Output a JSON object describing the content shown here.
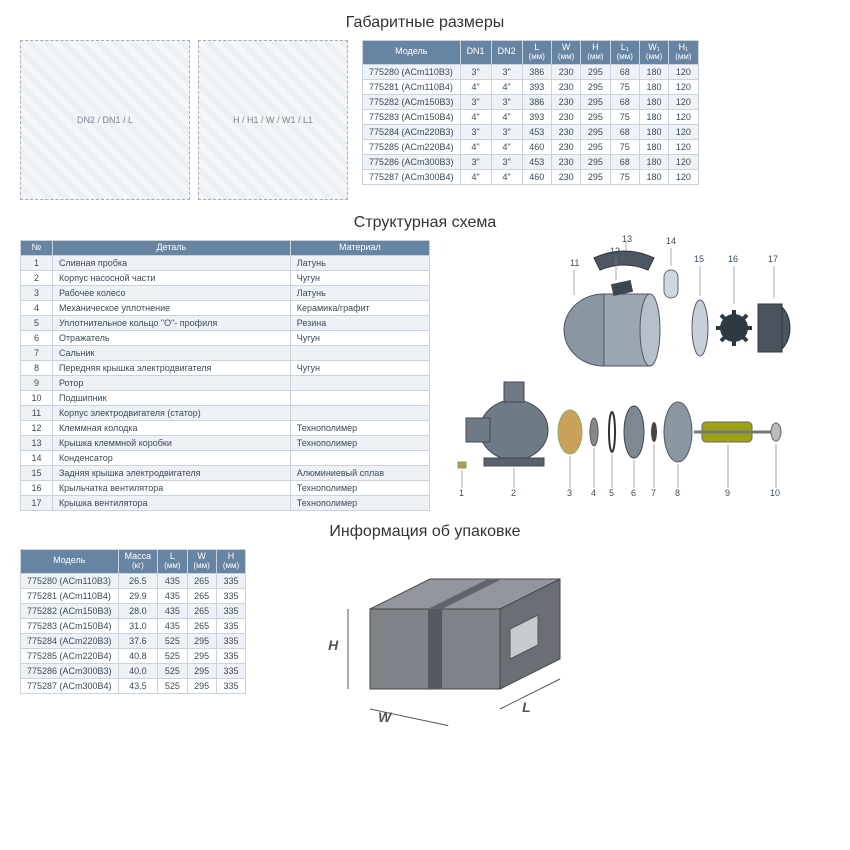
{
  "titles": {
    "dims": "Габаритные размеры",
    "struct": "Структурная схема",
    "pack": "Информация об упаковке"
  },
  "dims_table": {
    "headers": [
      "Модель",
      "DN1",
      "DN2",
      "L|(мм)",
      "W|(мм)",
      "H|(мм)",
      "L₁|(мм)",
      "W₁|(мм)",
      "H₁|(мм)"
    ],
    "rows": [
      [
        "775280 (ACm110B3)",
        "3\"",
        "3\"",
        "386",
        "230",
        "295",
        "68",
        "180",
        "120"
      ],
      [
        "775281 (ACm110B4)",
        "4\"",
        "4\"",
        "393",
        "230",
        "295",
        "75",
        "180",
        "120"
      ],
      [
        "775282 (ACm150B3)",
        "3\"",
        "3\"",
        "386",
        "230",
        "295",
        "68",
        "180",
        "120"
      ],
      [
        "775283 (ACm150B4)",
        "4\"",
        "4\"",
        "393",
        "230",
        "295",
        "75",
        "180",
        "120"
      ],
      [
        "775284 (ACm220B3)",
        "3\"",
        "3\"",
        "453",
        "230",
        "295",
        "68",
        "180",
        "120"
      ],
      [
        "775285 (ACm220B4)",
        "4\"",
        "4\"",
        "460",
        "230",
        "295",
        "75",
        "180",
        "120"
      ],
      [
        "775286 (ACm300B3)",
        "3\"",
        "3\"",
        "453",
        "230",
        "295",
        "68",
        "180",
        "120"
      ],
      [
        "775287 (ACm300B4)",
        "4\"",
        "4\"",
        "460",
        "230",
        "295",
        "75",
        "180",
        "120"
      ]
    ]
  },
  "parts_table": {
    "headers": [
      "№",
      "Деталь",
      "Материал"
    ],
    "rows": [
      [
        "1",
        "Сливная пробка",
        "Латунь"
      ],
      [
        "2",
        "Корпус насосной части",
        "Чугун"
      ],
      [
        "3",
        "Рабочее колесо",
        "Латунь"
      ],
      [
        "4",
        "Механическое уплотнение",
        "Керамика/графит"
      ],
      [
        "5",
        "Уплотнительное кольцо \"O\"- профиля",
        "Резина"
      ],
      [
        "6",
        "Отражатель",
        "Чугун"
      ],
      [
        "7",
        "Сальник",
        ""
      ],
      [
        "8",
        "Передняя крышка электродвигателя",
        "Чугун"
      ],
      [
        "9",
        "Ротор",
        ""
      ],
      [
        "10",
        "Подшипник",
        ""
      ],
      [
        "11",
        "Корпус электродвигателя (статор)",
        ""
      ],
      [
        "12",
        "Клеммная колодка",
        "Технополимер"
      ],
      [
        "13",
        "Крышка клеммной коробки",
        "Технополимер"
      ],
      [
        "14",
        "Конденсатор",
        ""
      ],
      [
        "15",
        "Задняя крышка электродвигателя",
        "Алюминиевый сплав"
      ],
      [
        "16",
        "Крыльчатка вентилятора",
        "Технополимер"
      ],
      [
        "17",
        "Крышка вентилятора",
        "Технополимер"
      ]
    ]
  },
  "pack_table": {
    "headers": [
      "Модель",
      "Масса|(кг)",
      "L|(мм)",
      "W|(мм)",
      "H|(мм)"
    ],
    "rows": [
      [
        "775280 (ACm110B3)",
        "26.5",
        "435",
        "265",
        "335"
      ],
      [
        "775281 (ACm110B4)",
        "29.9",
        "435",
        "265",
        "335"
      ],
      [
        "775282 (ACm150B3)",
        "28.0",
        "435",
        "265",
        "335"
      ],
      [
        "775283 (ACm150B4)",
        "31.0",
        "435",
        "265",
        "335"
      ],
      [
        "775284 (ACm220B3)",
        "37.6",
        "525",
        "295",
        "335"
      ],
      [
        "775285 (ACm220B4)",
        "40.8",
        "525",
        "295",
        "335"
      ],
      [
        "775286 (ACm300B3)",
        "40.0",
        "525",
        "295",
        "335"
      ],
      [
        "775287 (ACm300B4)",
        "43.5",
        "525",
        "295",
        "335"
      ]
    ]
  },
  "pkg_labels": {
    "H": "H",
    "W": "W",
    "L": "L"
  },
  "colors": {
    "header_bg": "#6884a3",
    "border": "#c9d3de",
    "stripe": "#eef2f6",
    "text": "#3a4a5a"
  }
}
